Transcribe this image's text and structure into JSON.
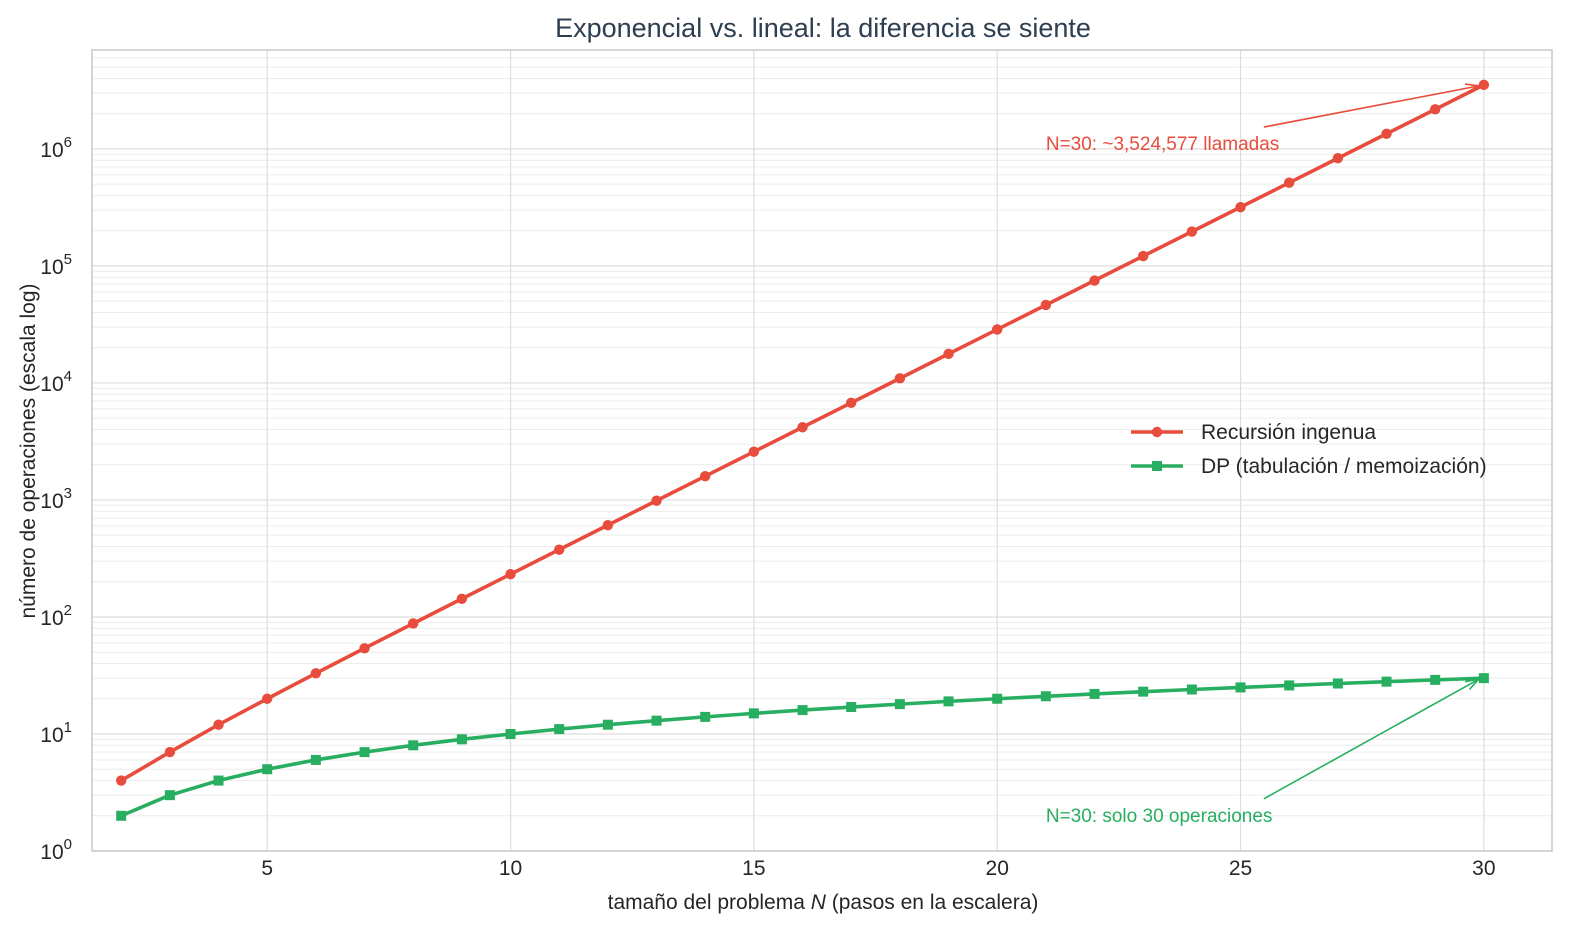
{
  "chart_data": {
    "type": "line",
    "title": "Exponencial vs. lineal: la diferencia se siente",
    "xlabel_parts": [
      "tamaño del problema ",
      "N",
      " (pasos en la escalera)"
    ],
    "ylabel": "número de operaciones (escala log)",
    "xlim": [
      1.4,
      31.4
    ],
    "ylim": [
      1,
      7000000
    ],
    "yscale": "log",
    "xticks": [
      5,
      10,
      15,
      20,
      25,
      30
    ],
    "yticks": [
      {
        "value": 1,
        "base": "10",
        "exp": "0"
      },
      {
        "value": 10,
        "base": "10",
        "exp": "1"
      },
      {
        "value": 100,
        "base": "10",
        "exp": "2"
      },
      {
        "value": 1000,
        "base": "10",
        "exp": "3"
      },
      {
        "value": 10000,
        "base": "10",
        "exp": "4"
      },
      {
        "value": 100000,
        "base": "10",
        "exp": "5"
      },
      {
        "value": 1000000,
        "base": "10",
        "exp": "6"
      }
    ],
    "grid": true,
    "legend_position": "center-right",
    "x": [
      2,
      3,
      4,
      5,
      6,
      7,
      8,
      9,
      10,
      11,
      12,
      13,
      14,
      15,
      16,
      17,
      18,
      19,
      20,
      21,
      22,
      23,
      24,
      25,
      26,
      27,
      28,
      29,
      30
    ],
    "series": [
      {
        "name": "Recursión ingenua",
        "color": "#e74c3c",
        "marker": "circle",
        "values": [
          4,
          7,
          12,
          20,
          33,
          54,
          88,
          143,
          232,
          376,
          609,
          986,
          1596,
          2583,
          4180,
          6764,
          10945,
          17710,
          28656,
          46367,
          75024,
          121392,
          196417,
          317810,
          514228,
          832039,
          1346268,
          2178308,
          3524577
        ]
      },
      {
        "name": "DP (tabulación / memoización)",
        "color": "#27ae60",
        "marker": "square",
        "values": [
          2,
          3,
          4,
          5,
          6,
          7,
          8,
          9,
          10,
          11,
          12,
          13,
          14,
          15,
          16,
          17,
          18,
          19,
          20,
          21,
          22,
          23,
          24,
          25,
          26,
          27,
          28,
          29,
          30
        ]
      }
    ],
    "annotations": [
      {
        "text": "N=30: ~3,524,577 llamadas",
        "color": "#e74c3c",
        "target_x": 30,
        "target_y": 3524577,
        "text_x": 21,
        "text_y": 1100000
      },
      {
        "text": "N=30: solo 30 operaciones",
        "color": "#27ae60",
        "target_x": 30,
        "target_y": 30,
        "text_x": 21,
        "text_y": 2
      }
    ]
  }
}
